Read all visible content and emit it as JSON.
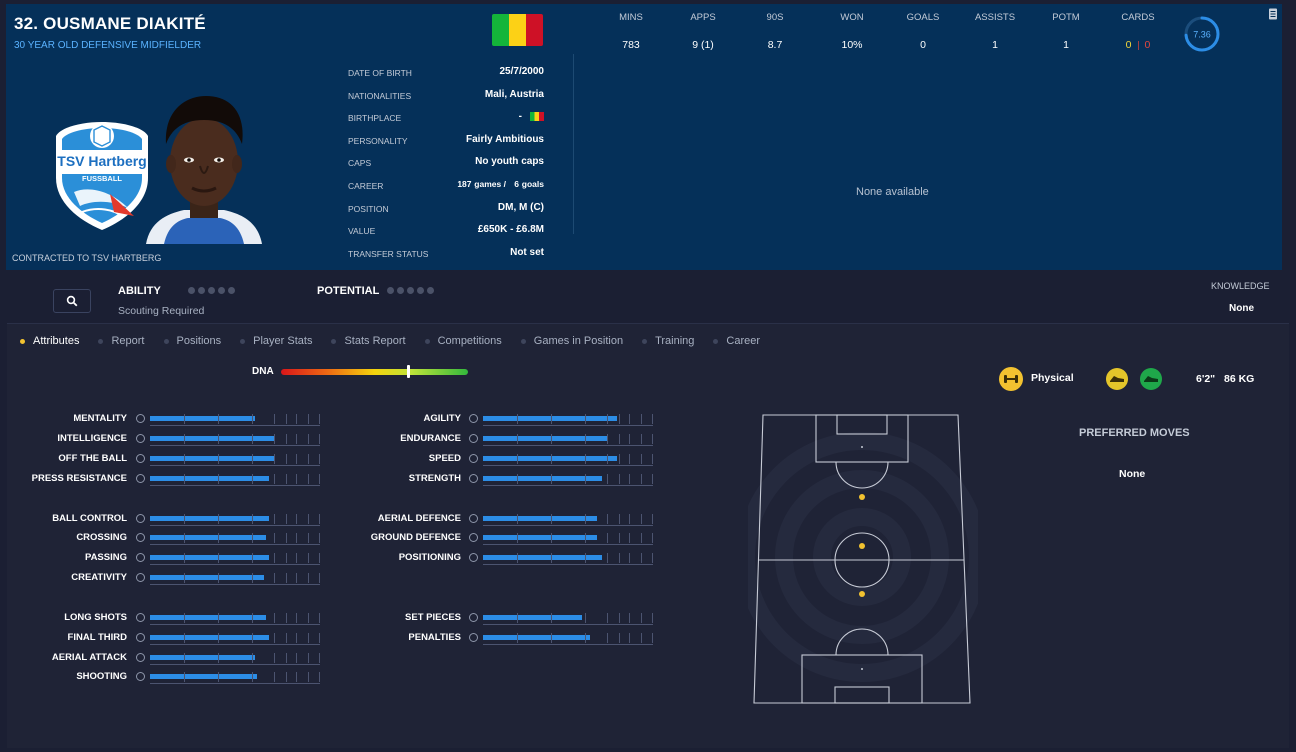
{
  "header": {
    "name": "32. OUSMANE DIAKITÉ",
    "subtitle": "30 YEAR OLD DEFENSIVE MIDFIELDER",
    "contracted": "CONTRACTED TO TSV HARTBERG",
    "club_badge_text": "TSV Hartberg",
    "club_badge_sub": "FUSSBALL",
    "flag_colors": [
      "#14b53a",
      "#fcd116",
      "#ce1126"
    ],
    "info": [
      {
        "label": "DATE OF BIRTH",
        "value": "25/7/2000"
      },
      {
        "label": "NATIONALITIES",
        "value": "Mali, Austria"
      },
      {
        "label": "BIRTHPLACE",
        "value": "-"
      },
      {
        "label": "PERSONALITY",
        "value": "Fairly Ambitious"
      },
      {
        "label": "CAPS",
        "value": "No youth caps"
      },
      {
        "label": "CAREER",
        "games": "187",
        "games_word": "games /",
        "goals": "6",
        "goals_word": "goals"
      },
      {
        "label": "POSITION",
        "value": "DM, M (C)"
      },
      {
        "label": "VALUE",
        "value": "£650K - £6.8M"
      },
      {
        "label": "TRANSFER STATUS",
        "value": "Not set"
      }
    ],
    "stats": [
      {
        "label": "MINS",
        "value": "783"
      },
      {
        "label": "APPS",
        "value": "9 (1)"
      },
      {
        "label": "90S",
        "value": "8.7"
      },
      {
        "label": "WON",
        "value": "10%"
      },
      {
        "label": "GOALS",
        "value": "0"
      },
      {
        "label": "ASSISTS",
        "value": "1"
      },
      {
        "label": "POTM",
        "value": "1"
      },
      {
        "label": "CARDS",
        "yellow": "0",
        "red": "0"
      }
    ],
    "rating": "7.36",
    "rating_fraction": 0.736,
    "none_available": "None available"
  },
  "ability": {
    "label": "ABILITY",
    "scouting": "Scouting Required",
    "potential_label": "POTENTIAL",
    "knowledge_label": "KNOWLEDGE",
    "knowledge_value": "None"
  },
  "tabs": [
    "Attributes",
    "Report",
    "Positions",
    "Player Stats",
    "Stats Report",
    "Competitions",
    "Games in Position",
    "Training",
    "Career"
  ],
  "active_tab": "Attributes",
  "dna": {
    "label": "DNA",
    "level": 0.68
  },
  "attributes": {
    "left": [
      {
        "name": "MENTALITY",
        "level": 0.62
      },
      {
        "name": "INTELLIGENCE",
        "level": 0.73
      },
      {
        "name": "OFF THE BALL",
        "level": 0.73
      },
      {
        "name": "PRESS RESISTANCE",
        "level": 0.7
      },
      {
        "name": "BALL CONTROL",
        "level": 0.7
      },
      {
        "name": "CROSSING",
        "level": 0.68
      },
      {
        "name": "PASSING",
        "level": 0.7
      },
      {
        "name": "CREATIVITY",
        "level": 0.67
      },
      {
        "name": "LONG SHOTS",
        "level": 0.68
      },
      {
        "name": "FINAL THIRD",
        "level": 0.7
      },
      {
        "name": "AERIAL ATTACK",
        "level": 0.62
      },
      {
        "name": "SHOOTING",
        "level": 0.63
      }
    ],
    "right": [
      {
        "name": "AGILITY",
        "level": 0.79
      },
      {
        "name": "ENDURANCE",
        "level": 0.73
      },
      {
        "name": "SPEED",
        "level": 0.79
      },
      {
        "name": "STRENGTH",
        "level": 0.7
      },
      {
        "name": "AERIAL DEFENCE",
        "level": 0.67
      },
      {
        "name": "GROUND DEFENCE",
        "level": 0.67
      },
      {
        "name": "POSITIONING",
        "level": 0.7
      },
      {
        "name": "SET PIECES",
        "level": 0.58
      },
      {
        "name": "PENALTIES",
        "level": 0.63
      }
    ]
  },
  "physical": {
    "label": "Physical",
    "height": "6'2\"",
    "weight": "86 KG"
  },
  "preferred_moves": {
    "label": "PREFERRED MOVES",
    "value": "None"
  },
  "colors": {
    "accent_blue": "#2c8de6",
    "header_bg": "#053059",
    "gold": "#f2c230",
    "green": "#1fa84a"
  }
}
